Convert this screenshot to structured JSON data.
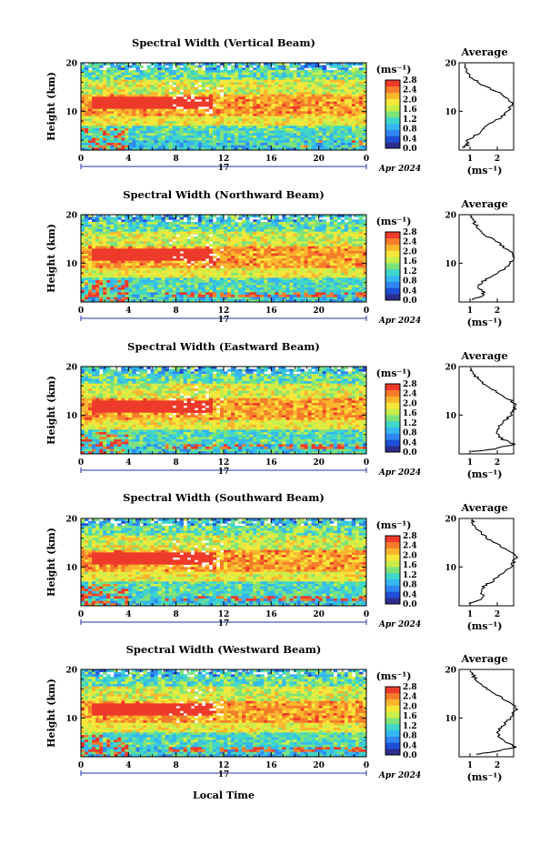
{
  "figure": {
    "date_label": "Apr 2024",
    "day_label": "17",
    "x_axis_label": "Local Time",
    "y_axis_label": "Height (km)",
    "unit_label": "(ms⁻¹)",
    "average_title": "Average",
    "colorbar_ticks": [
      "0.0",
      "0.4",
      "0.8",
      "1.2",
      "1.6",
      "2.0",
      "2.4",
      "2.8"
    ],
    "colormap": [
      "#2b2e8f",
      "#1f4fd8",
      "#2f86f0",
      "#35b7f0",
      "#3fd6c9",
      "#7ee27a",
      "#c9ee4a",
      "#f7e73a",
      "#f9b52e",
      "#f57c2a",
      "#ee3a2a"
    ]
  },
  "chart_data": [
    {
      "type": "heatmap",
      "title": "Spectral Width (Vertical Beam)",
      "x_ticks": [
        "0",
        "4",
        "8",
        "12",
        "16",
        "20",
        "0"
      ],
      "y_ticks": [
        "20",
        "10"
      ],
      "xlim": [
        0,
        24
      ],
      "ylim": [
        2,
        20
      ],
      "colorbar_range": [
        0,
        2.8
      ],
      "average_profile": {
        "x_ticks": [
          "1",
          "2"
        ],
        "xlim": [
          0.6,
          2.6
        ],
        "height": [
          2.5,
          3,
          4,
          5,
          6,
          7,
          8,
          9,
          10,
          11,
          12,
          13,
          14,
          15,
          16,
          17,
          18,
          19,
          19.8
        ],
        "value": [
          0.7,
          0.9,
          0.9,
          1.2,
          1.4,
          1.6,
          1.9,
          2.2,
          2.4,
          2.5,
          2.5,
          2.3,
          2.0,
          1.6,
          1.3,
          1.0,
          0.9,
          0.8,
          0.8
        ]
      }
    },
    {
      "type": "heatmap",
      "title": "Spectral Width (Northward Beam)",
      "x_ticks": [
        "0",
        "4",
        "8",
        "12",
        "16",
        "20",
        "0"
      ],
      "y_ticks": [
        "20",
        "10"
      ],
      "xlim": [
        0,
        24
      ],
      "ylim": [
        2,
        20
      ],
      "colorbar_range": [
        0,
        2.8
      ],
      "average_profile": {
        "x_ticks": [
          "1",
          "2"
        ],
        "xlim": [
          0.6,
          2.6
        ],
        "height": [
          2.5,
          3,
          4,
          5,
          6,
          7,
          8,
          9,
          10,
          11,
          12,
          13,
          14,
          15,
          16,
          17,
          18,
          19,
          19.8
        ],
        "value": [
          1.0,
          1.4,
          1.5,
          1.3,
          1.4,
          1.7,
          2.0,
          2.3,
          2.5,
          2.6,
          2.6,
          2.3,
          2.1,
          1.8,
          1.5,
          1.3,
          1.2,
          1.1,
          1.0
        ]
      }
    },
    {
      "type": "heatmap",
      "title": "Spectral Width (Eastward Beam)",
      "x_ticks": [
        "0",
        "4",
        "8",
        "12",
        "16",
        "20",
        "0"
      ],
      "y_ticks": [
        "20",
        "10"
      ],
      "xlim": [
        0,
        24
      ],
      "ylim": [
        2,
        20
      ],
      "colorbar_range": [
        0,
        2.8
      ],
      "average_profile": {
        "x_ticks": [
          "1",
          "2"
        ],
        "xlim": [
          0.6,
          2.6
        ],
        "height": [
          2.5,
          3,
          4,
          5,
          6,
          7,
          8,
          9,
          10,
          11,
          12,
          13,
          14,
          15,
          16,
          17,
          18,
          19,
          19.8
        ],
        "value": [
          1.1,
          1.9,
          2.6,
          2.2,
          2.0,
          2.0,
          2.1,
          2.3,
          2.5,
          2.6,
          2.7,
          2.5,
          2.2,
          1.9,
          1.6,
          1.4,
          1.2,
          1.1,
          1.0
        ]
      }
    },
    {
      "type": "heatmap",
      "title": "Spectral Width (Southward Beam)",
      "x_ticks": [
        "0",
        "4",
        "8",
        "12",
        "16",
        "20",
        "0"
      ],
      "y_ticks": [
        "20",
        "10"
      ],
      "xlim": [
        0,
        24
      ],
      "ylim": [
        2,
        20
      ],
      "colorbar_range": [
        0,
        2.8
      ],
      "average_profile": {
        "x_ticks": [
          "1",
          "2"
        ],
        "xlim": [
          0.6,
          2.6
        ],
        "height": [
          2.5,
          3,
          4,
          5,
          6,
          7,
          8,
          9,
          10,
          11,
          12,
          13,
          14,
          15,
          16,
          17,
          18,
          19,
          19.8
        ],
        "value": [
          1.0,
          1.3,
          1.5,
          1.4,
          1.5,
          1.8,
          2.0,
          2.3,
          2.5,
          2.6,
          2.7,
          2.5,
          2.2,
          1.9,
          1.6,
          1.4,
          1.2,
          1.1,
          1.1
        ]
      }
    },
    {
      "type": "heatmap",
      "title": "Spectral Width (Westward Beam)",
      "x_ticks": [
        "0",
        "4",
        "8",
        "12",
        "16",
        "20",
        "0"
      ],
      "y_ticks": [
        "20",
        "10"
      ],
      "xlim": [
        0,
        24
      ],
      "ylim": [
        2,
        20
      ],
      "colorbar_range": [
        0,
        2.8
      ],
      "average_profile": {
        "x_ticks": [
          "1",
          "2"
        ],
        "xlim": [
          0.6,
          2.6
        ],
        "height": [
          2.5,
          3,
          4,
          5,
          6,
          7,
          8,
          9,
          10,
          11,
          12,
          13,
          14,
          15,
          16,
          17,
          18,
          19,
          19.8
        ],
        "value": [
          1.2,
          1.8,
          2.7,
          2.3,
          2.1,
          2.0,
          2.1,
          2.3,
          2.5,
          2.6,
          2.7,
          2.5,
          2.2,
          1.9,
          1.6,
          1.4,
          1.2,
          1.1,
          1.0
        ]
      }
    }
  ]
}
